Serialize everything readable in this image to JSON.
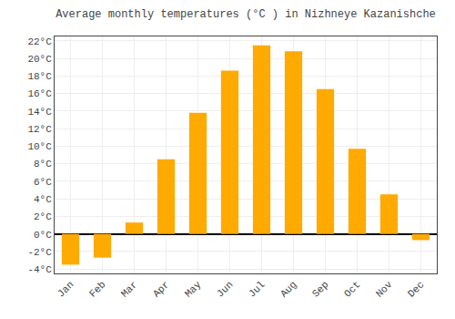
{
  "chart_data": {
    "type": "bar",
    "title": "Average monthly temperatures (°C ) in Nizhneye Kazanishche",
    "categories": [
      "Jan",
      "Feb",
      "Mar",
      "Apr",
      "May",
      "Jun",
      "Jul",
      "Aug",
      "Sep",
      "Oct",
      "Nov",
      "Dec"
    ],
    "values": [
      -3.5,
      -2.7,
      1.3,
      8.5,
      13.8,
      18.6,
      21.5,
      20.8,
      16.5,
      9.7,
      4.5,
      -0.7
    ],
    "color": "#FFAA00",
    "ylim": [
      -4.5,
      22.5
    ],
    "yticks": [
      {
        "value": -4,
        "label": "-4°C"
      },
      {
        "value": -2,
        "label": "-2°C"
      },
      {
        "value": 0,
        "label": "0°C"
      },
      {
        "value": 2,
        "label": "2°C"
      },
      {
        "value": 4,
        "label": "4°C"
      },
      {
        "value": 6,
        "label": "6°C"
      },
      {
        "value": 8,
        "label": "8°C"
      },
      {
        "value": 10,
        "label": "10°C"
      },
      {
        "value": 12,
        "label": "12°C"
      },
      {
        "value": 14,
        "label": "14°C"
      },
      {
        "value": 16,
        "label": "16°C"
      },
      {
        "value": 18,
        "label": "18°C"
      },
      {
        "value": 20,
        "label": "20°C"
      },
      {
        "value": 22,
        "label": "22°C"
      }
    ],
    "grid": true
  }
}
